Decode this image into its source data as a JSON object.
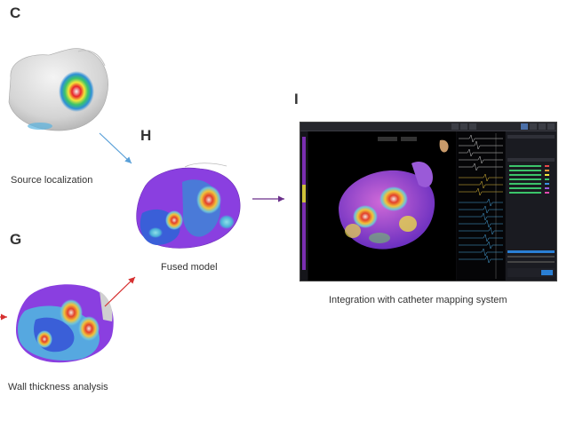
{
  "panels": {
    "c": {
      "letter": "C",
      "caption": "Source localization"
    },
    "h": {
      "letter": "H",
      "caption": "Fused model"
    },
    "g": {
      "letter": "G",
      "caption": "Wall thickness analysis"
    },
    "i": {
      "letter": "I",
      "caption": "Integration with catheter mapping system"
    }
  },
  "colors": {
    "arrow_c_to_h": "#5aa0d8",
    "arrow_g_to_h": "#d63030",
    "arrow_h_to_i": "#6a2f8a",
    "map_background": "#0b0b0e",
    "map_accent": "#2a7fd4"
  },
  "icons": {
    "c_model": "heart-model-gray-with-hotspot",
    "h_model": "heart-model-purple-fused",
    "g_model": "heart-model-thickness-map",
    "i_model": "heart-model-3d-in-mapping-software"
  }
}
